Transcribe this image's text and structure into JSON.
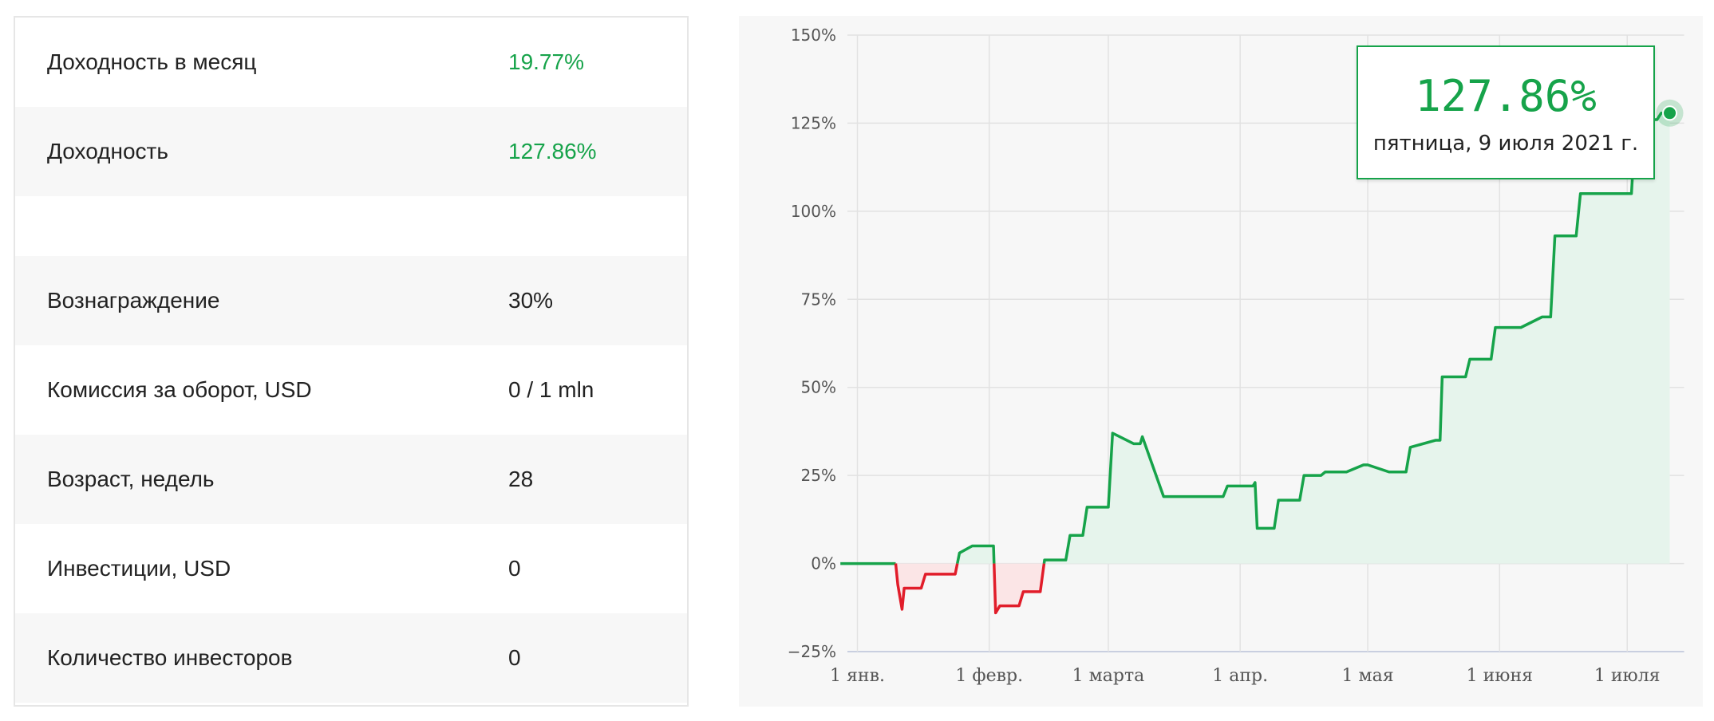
{
  "stats": {
    "rows": [
      {
        "label": "Доходность в месяц",
        "value": "19.77%"
      },
      {
        "label": "Доходность",
        "value": "127.86%"
      },
      {
        "label": "Вознаграждение",
        "value": "30%"
      },
      {
        "label": "Комиссия за оборот, USD",
        "value": "0 / 1 mln"
      },
      {
        "label": "Возраст, недель",
        "value": "28"
      },
      {
        "label": "Инвестиции, USD",
        "value": "0"
      },
      {
        "label": "Количество инвесторов",
        "value": "0"
      }
    ],
    "positive_color": "#16a34a"
  },
  "tooltip": {
    "value": "127.86%",
    "date": "пятница, 9 июля 2021 г."
  },
  "chart_data": {
    "type": "area",
    "title": "",
    "xlabel": "",
    "ylabel": "",
    "ylim": [
      -25,
      150
    ],
    "y_ticks": [
      150,
      125,
      100,
      75,
      50,
      25,
      0,
      -25
    ],
    "y_tick_labels": [
      "150%",
      "125%",
      "100%",
      "75%",
      "50%",
      "25%",
      "0%",
      "−25%"
    ],
    "x_ticks": [
      {
        "day": 0,
        "label": "1 янв."
      },
      {
        "day": 31,
        "label": "1 февр."
      },
      {
        "day": 59,
        "label": "1 марта"
      },
      {
        "day": 90,
        "label": "1 апр."
      },
      {
        "day": 120,
        "label": "1 мая"
      },
      {
        "day": 151,
        "label": "1 июня"
      },
      {
        "day": 181,
        "label": "1 июля"
      }
    ],
    "grid": true,
    "positive_color": "#16a34a",
    "negative_color": "#e11d2a",
    "positive_fill": "#e6f4ec",
    "negative_fill": "#fbe5e6",
    "series": [
      {
        "x": [
          -4,
          9,
          9.5,
          10.5,
          11,
          15,
          16,
          23,
          24,
          27,
          28,
          32,
          32.5,
          33.5,
          34,
          38,
          39,
          43,
          44,
          49,
          50,
          53,
          54,
          59,
          60,
          65,
          66,
          66.5,
          67,
          72,
          73,
          73.5,
          74,
          86,
          87,
          92,
          93,
          93.5,
          94,
          98,
          99,
          104,
          105,
          109,
          110,
          114,
          115,
          119,
          120,
          125,
          126,
          129,
          130,
          136,
          137,
          137.5,
          138,
          143,
          144,
          149,
          150,
          155,
          156,
          161,
          162,
          163,
          164,
          169,
          170,
          176,
          177,
          182,
          183,
          188,
          189,
          190,
          191
        ],
        "y": [
          0,
          0,
          -6,
          -13,
          -7,
          -7,
          -3,
          -3,
          3,
          5,
          5,
          5,
          -14,
          -12,
          -12,
          -12,
          -8,
          -8,
          1,
          1,
          8,
          8,
          16,
          16,
          37,
          34,
          34,
          34,
          36,
          19,
          19,
          19,
          19,
          19,
          22,
          22,
          22,
          23,
          10,
          10,
          18,
          18,
          25,
          25,
          26,
          26,
          26,
          28,
          28,
          26,
          26,
          26,
          33,
          35,
          35,
          53,
          53,
          53,
          58,
          58,
          67,
          67,
          67,
          70,
          70,
          70,
          93,
          93,
          105,
          105,
          105,
          105,
          126,
          126,
          127.86,
          127.86,
          127.86
        ]
      }
    ]
  }
}
